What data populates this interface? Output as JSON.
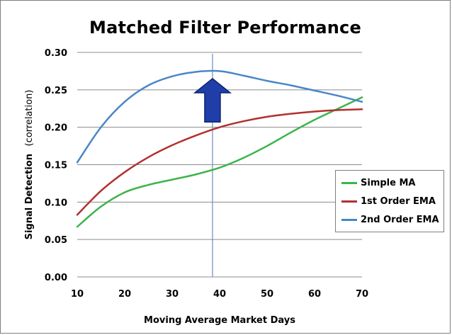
{
  "chart_data": {
    "type": "line",
    "title": "Matched Filter Performance",
    "xlabel": "Moving Average Market Days",
    "ylabel_main": "Signal Detection",
    "ylabel_sub": "(correlation)",
    "xlim": [
      10,
      70
    ],
    "ylim": [
      0,
      0.3
    ],
    "x_ticks": [
      10,
      20,
      30,
      40,
      50,
      60,
      70
    ],
    "x_tick_labels": [
      "10",
      "20",
      "30",
      "40",
      "50",
      "60",
      "70"
    ],
    "y_ticks": [
      0,
      0.05,
      0.1,
      0.15,
      0.2,
      0.25,
      0.3
    ],
    "y_tick_labels": [
      "0.00",
      "0.05",
      "0.10",
      "0.15",
      "0.20",
      "0.25",
      "0.30"
    ],
    "grid": "horizontal",
    "legend_position": "right",
    "x": [
      10,
      15,
      20,
      25,
      30,
      35,
      40,
      45,
      50,
      55,
      60,
      65,
      70
    ],
    "series": [
      {
        "name": "Simple MA",
        "color": "#3cb44b",
        "values": [
          0.067,
          0.094,
          0.113,
          0.123,
          0.13,
          0.137,
          0.146,
          0.159,
          0.175,
          0.193,
          0.21,
          0.225,
          0.24
        ]
      },
      {
        "name": "1st Order EMA",
        "color": "#b2302e",
        "values": [
          0.083,
          0.115,
          0.14,
          0.16,
          0.176,
          0.189,
          0.2,
          0.208,
          0.214,
          0.218,
          0.221,
          0.223,
          0.224
        ]
      },
      {
        "name": "2nd Order EMA",
        "color": "#4a86c8",
        "values": [
          0.153,
          0.2,
          0.234,
          0.256,
          0.268,
          0.274,
          0.275,
          0.269,
          0.262,
          0.256,
          0.249,
          0.242,
          0.234
        ]
      }
    ],
    "marker_line_x": 38.5,
    "marker_line_color": "#6a8fc0",
    "arrow": {
      "direction": "up",
      "x": 38.5,
      "y_top": 0.265,
      "y_bottom": 0.207,
      "color": "#1f3ea8"
    }
  }
}
